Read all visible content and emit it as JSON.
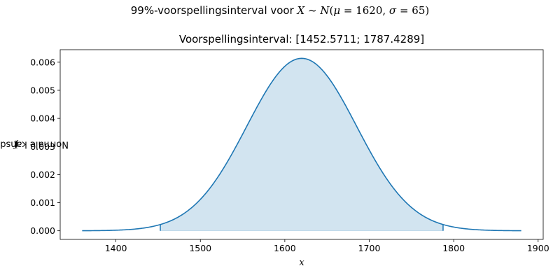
{
  "chart_data": {
    "type": "area",
    "title": "Voorspellingsinterval: [1452.5711; 1787.4289]",
    "suptitle": {
      "prefix": "99%-voorspellingsinterval voor ",
      "var": "X",
      "tilde": " ~ ",
      "dist": "N",
      "open": "(",
      "mu": "μ",
      "eq1": " = ",
      "mu_value": "1620",
      "comma": ", ",
      "sigma": "σ",
      "eq2": " = ",
      "sigma_value": "65",
      "close": ")"
    },
    "xlabel": "x",
    "ylabel": {
      "text": "Normale kansdichtheid ",
      "fx": "f",
      "open": "(",
      "var": "x",
      "close": ")"
    },
    "distribution": {
      "mean": 1620,
      "sd": 65
    },
    "curve_range": [
      1360,
      1880
    ],
    "interval": [
      1452.5711,
      1787.4289
    ],
    "xlim": [
      1334,
      1906
    ],
    "ylim": [
      -0.000307,
      0.006445
    ],
    "xticks": [
      1400,
      1500,
      1600,
      1700,
      1800,
      1900
    ],
    "yticks": [
      0.0,
      0.001,
      0.002,
      0.003,
      0.004,
      0.005,
      0.006
    ],
    "ytick_labels": [
      "0.000",
      "0.001",
      "0.002",
      "0.003",
      "0.004",
      "0.005",
      "0.006"
    ],
    "grid": false,
    "colors": {
      "line": "#1f77b4",
      "fill": "#1f77b4",
      "fill_opacity": 0.2
    }
  }
}
